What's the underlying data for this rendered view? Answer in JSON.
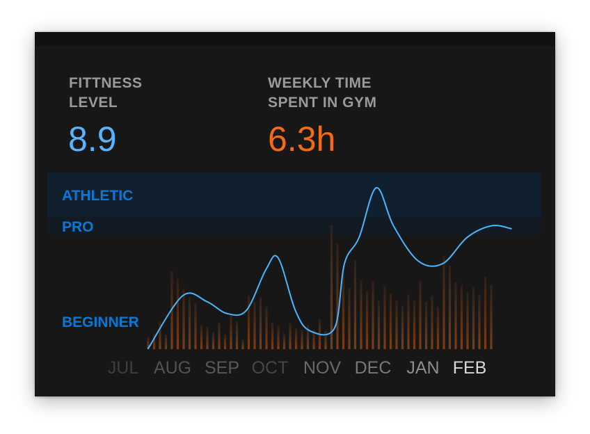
{
  "stats": {
    "fitness": {
      "label_lines": [
        "FITTNESS",
        "LEVEL"
      ],
      "value": "8.9",
      "color": "#59b3ff"
    },
    "gym": {
      "label_lines": [
        "WEEKLY TIME",
        "SPENT IN GYM"
      ],
      "value": "6.3h",
      "color": "#f26b16"
    }
  },
  "chart_data": {
    "type": "line",
    "months": [
      "JUL",
      "AUG",
      "SEP",
      "OCT",
      "NOV",
      "DEC",
      "JAN",
      "FEB"
    ],
    "month_label_colors": [
      "#3e3e3e",
      "#525252",
      "#585858",
      "#474747",
      "#6a6a6a",
      "#787878",
      "#8d8d8d",
      "#d9d9d9"
    ],
    "bands": [
      {
        "label": "ATHLETIC",
        "from": 7.5,
        "to": 10,
        "fill": "#10202f"
      },
      {
        "label": "PRO",
        "from": 6.5,
        "to": 7.5,
        "fill": "#121b24"
      },
      {
        "label": "BEGINNER",
        "from": 0,
        "to": 6.5,
        "fill": "none"
      }
    ],
    "band_label_color": "#0a78d8",
    "y_range": [
      0,
      10
    ],
    "line_color": "#4ab6ff",
    "fitness_level": [
      {
        "x": 0.0,
        "y": 0.0
      },
      {
        "x": 0.7,
        "y": 1.8
      },
      {
        "x": 1.2,
        "y": 1.6
      },
      {
        "x": 1.6,
        "y": 1.2
      },
      {
        "x": 2.0,
        "y": 1.3
      },
      {
        "x": 2.4,
        "y": 2.7
      },
      {
        "x": 2.65,
        "y": 3.1
      },
      {
        "x": 3.0,
        "y": 1.3
      },
      {
        "x": 3.3,
        "y": 0.6
      },
      {
        "x": 3.8,
        "y": 0.7
      },
      {
        "x": 4.0,
        "y": 2.9
      },
      {
        "x": 4.3,
        "y": 3.8
      },
      {
        "x": 4.65,
        "y": 5.5
      },
      {
        "x": 5.0,
        "y": 4.2
      },
      {
        "x": 5.5,
        "y": 3.0
      },
      {
        "x": 6.0,
        "y": 2.9
      },
      {
        "x": 6.5,
        "y": 3.8
      },
      {
        "x": 7.0,
        "y": 4.2
      },
      {
        "x": 7.4,
        "y": 4.1
      }
    ],
    "bar_color": "#fa6c14",
    "weekly_gym_hours": [
      1.0,
      1.3,
      2.3,
      1.2,
      6.4,
      5.8,
      5.0,
      4.3,
      3.8,
      2.0,
      1.8,
      1.4,
      2.2,
      1.2,
      2.9,
      2.3,
      0.8,
      4.4,
      3.9,
      4.3,
      3.5,
      2.2,
      1.9,
      1.3,
      2.2,
      1.7,
      1.6,
      2.0,
      1.6,
      2.5,
      1.5,
      10.2,
      8.7,
      6.4,
      5.1,
      7.3,
      5.7,
      4.8,
      5.6,
      4.0,
      5.2,
      4.6,
      4.0,
      3.6,
      4.5,
      4.0,
      5.6,
      3.9,
      4.4,
      3.5,
      7.7,
      6.9,
      5.5,
      5.3,
      4.7,
      5.1,
      4.5,
      6.0,
      5.3
    ]
  }
}
